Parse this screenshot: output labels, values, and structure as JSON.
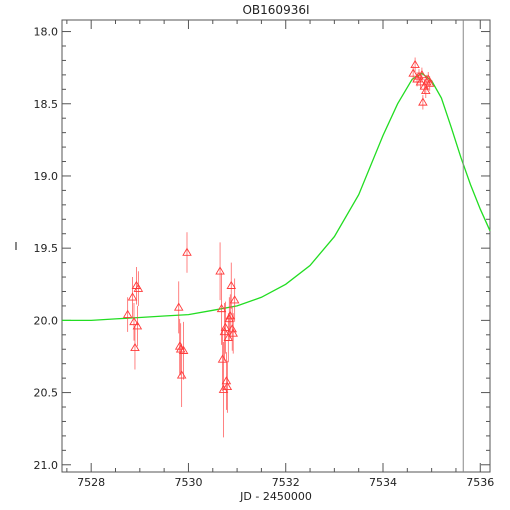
{
  "chart_data": {
    "type": "scatter",
    "title": "OB160936I",
    "xlabel": "JD - 2450000",
    "ylabel": "I",
    "xlim": [
      7527.4,
      7536.2
    ],
    "ylim": [
      21.05,
      17.92
    ],
    "y_inverted": true,
    "x_ticks": [
      7528,
      7530,
      7532,
      7534,
      7536
    ],
    "x_tick_labels": [
      "7528",
      "7530",
      "7532",
      "7534",
      "7536"
    ],
    "y_ticks": [
      18.0,
      18.5,
      19.0,
      19.5,
      20.0,
      20.5,
      21.0
    ],
    "y_tick_labels": [
      "18.0",
      "18.5",
      "19.0",
      "19.5",
      "20.0",
      "20.5",
      "21.0"
    ],
    "vertical_line_x": 7535.65,
    "colors": {
      "points": "#ff3b3b",
      "model": "#22dd22",
      "frame": "#555555",
      "vline": "#888888"
    },
    "series": [
      {
        "kind": "points-with-errors",
        "marker": "triangle",
        "points": [
          {
            "x": 7528.75,
            "y": 19.96,
            "err": 0.12
          },
          {
            "x": 7528.85,
            "y": 19.84,
            "err": 0.14
          },
          {
            "x": 7528.88,
            "y": 20.01,
            "err": 0.13
          },
          {
            "x": 7528.9,
            "y": 20.19,
            "err": 0.15
          },
          {
            "x": 7528.93,
            "y": 19.76,
            "err": 0.13
          },
          {
            "x": 7528.95,
            "y": 20.04,
            "err": 0.14
          },
          {
            "x": 7528.97,
            "y": 19.78,
            "err": 0.12
          },
          {
            "x": 7529.8,
            "y": 19.91,
            "err": 0.18
          },
          {
            "x": 7529.82,
            "y": 20.18,
            "err": 0.19
          },
          {
            "x": 7529.84,
            "y": 20.2,
            "err": 0.18
          },
          {
            "x": 7529.86,
            "y": 20.38,
            "err": 0.22
          },
          {
            "x": 7529.9,
            "y": 20.21,
            "err": 0.2
          },
          {
            "x": 7529.97,
            "y": 19.53,
            "err": 0.14
          },
          {
            "x": 7530.65,
            "y": 19.66,
            "err": 0.2
          },
          {
            "x": 7530.68,
            "y": 19.92,
            "err": 0.25
          },
          {
            "x": 7530.7,
            "y": 20.27,
            "err": 0.22
          },
          {
            "x": 7530.72,
            "y": 20.48,
            "err": 0.33
          },
          {
            "x": 7530.74,
            "y": 20.08,
            "err": 0.2
          },
          {
            "x": 7530.76,
            "y": 20.05,
            "err": 0.18
          },
          {
            "x": 7530.78,
            "y": 20.42,
            "err": 0.2
          },
          {
            "x": 7530.8,
            "y": 20.46,
            "err": 0.18
          },
          {
            "x": 7530.82,
            "y": 20.12,
            "err": 0.17
          },
          {
            "x": 7530.84,
            "y": 19.99,
            "err": 0.15
          },
          {
            "x": 7530.86,
            "y": 19.97,
            "err": 0.15
          },
          {
            "x": 7530.88,
            "y": 19.76,
            "err": 0.16
          },
          {
            "x": 7530.9,
            "y": 20.06,
            "err": 0.15
          },
          {
            "x": 7530.92,
            "y": 20.09,
            "err": 0.14
          },
          {
            "x": 7530.95,
            "y": 19.86,
            "err": 0.15
          },
          {
            "x": 7534.62,
            "y": 18.29,
            "err": 0.05
          },
          {
            "x": 7534.66,
            "y": 18.23,
            "err": 0.05
          },
          {
            "x": 7534.7,
            "y": 18.33,
            "err": 0.05
          },
          {
            "x": 7534.74,
            "y": 18.31,
            "err": 0.05
          },
          {
            "x": 7534.77,
            "y": 18.35,
            "err": 0.05
          },
          {
            "x": 7534.8,
            "y": 18.3,
            "err": 0.05
          },
          {
            "x": 7534.82,
            "y": 18.49,
            "err": 0.05
          },
          {
            "x": 7534.85,
            "y": 18.38,
            "err": 0.05
          },
          {
            "x": 7534.88,
            "y": 18.41,
            "err": 0.05
          },
          {
            "x": 7534.9,
            "y": 18.35,
            "err": 0.05
          },
          {
            "x": 7534.93,
            "y": 18.33,
            "err": 0.05
          },
          {
            "x": 7534.96,
            "y": 18.36,
            "err": 0.05
          }
        ]
      },
      {
        "kind": "model-curve",
        "x": [
          7527.4,
          7528.0,
          7528.5,
          7529.0,
          7529.5,
          7530.0,
          7530.5,
          7531.0,
          7531.5,
          7532.0,
          7532.5,
          7533.0,
          7533.5,
          7534.0,
          7534.3,
          7534.6,
          7534.8,
          7535.0,
          7535.2,
          7535.4,
          7535.6,
          7535.8,
          7536.0,
          7536.2
        ],
        "y": [
          20.0,
          20.0,
          19.99,
          19.98,
          19.97,
          19.96,
          19.93,
          19.9,
          19.84,
          19.75,
          19.62,
          19.42,
          19.13,
          18.72,
          18.5,
          18.33,
          18.29,
          18.34,
          18.46,
          18.66,
          18.87,
          19.06,
          19.23,
          19.38
        ]
      }
    ]
  }
}
